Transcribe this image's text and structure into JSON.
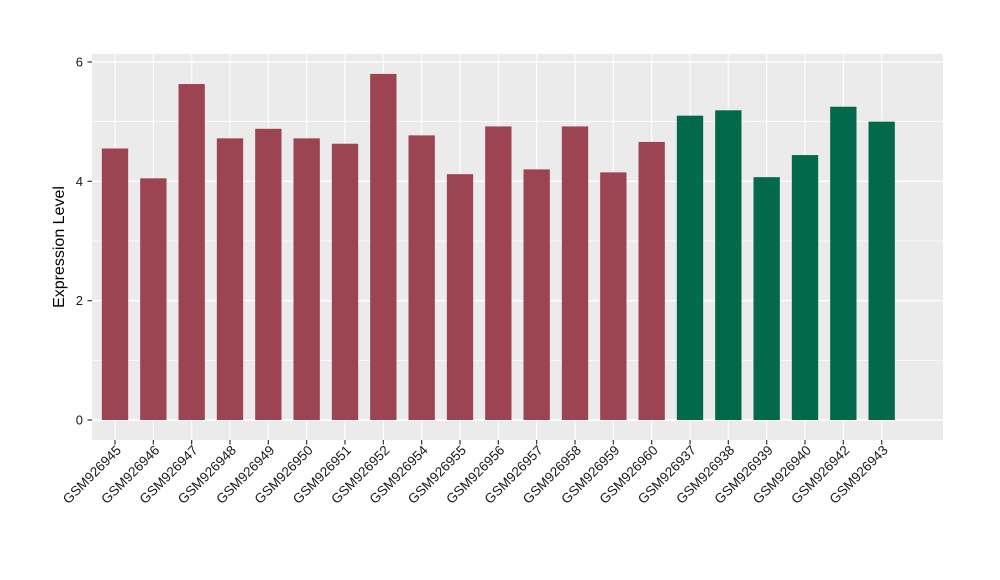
{
  "chart_data": {
    "type": "bar",
    "title": "",
    "xlabel": "",
    "ylabel": "Expression Level",
    "ylim": [
      0,
      6
    ],
    "yticks": [
      0,
      2,
      4,
      6
    ],
    "yticks_minor": [
      1,
      3,
      5
    ],
    "grid": "on",
    "legend": "none",
    "categories": [
      "GSM926945",
      "GSM926946",
      "GSM926947",
      "GSM926948",
      "GSM926949",
      "GSM926950",
      "GSM926951",
      "GSM926952",
      "GSM926954",
      "GSM926955",
      "GSM926956",
      "GSM926957",
      "GSM926958",
      "GSM926959",
      "GSM926960",
      "GSM926937",
      "GSM926938",
      "GSM926939",
      "GSM926940",
      "GSM926942",
      "GSM926943"
    ],
    "values": [
      4.55,
      4.05,
      5.63,
      4.72,
      4.88,
      4.72,
      4.63,
      5.8,
      4.77,
      4.12,
      4.92,
      4.2,
      4.92,
      4.15,
      4.66,
      5.1,
      5.19,
      4.07,
      4.44,
      5.25,
      5.0
    ],
    "bar_colors": [
      "#9D4452",
      "#9D4452",
      "#9D4452",
      "#9D4452",
      "#9D4452",
      "#9D4452",
      "#9D4452",
      "#9D4452",
      "#9D4452",
      "#9D4452",
      "#9D4452",
      "#9D4452",
      "#9D4452",
      "#9D4452",
      "#9D4452",
      "#02694B",
      "#02694B",
      "#02694B",
      "#02694B",
      "#02694B",
      "#02694B"
    ],
    "group_palette": {
      "maroon_group": "#9D4452",
      "green_group": "#02694B"
    }
  },
  "style_colors": {
    "panel_background": "#EBEBEB",
    "gridline": "#FFFFFF",
    "tick_mark": "#333333",
    "axis_text": "#1A1A1A",
    "axis_title": "#000000",
    "figure_background": "#FFFFFF"
  }
}
